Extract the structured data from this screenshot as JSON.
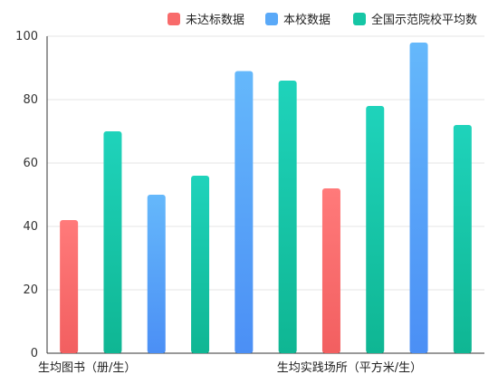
{
  "chart_data": {
    "type": "bar",
    "ylim": [
      0,
      100
    ],
    "yticks": [
      0,
      20,
      40,
      60,
      80,
      100
    ],
    "grid": true,
    "legend_position": "top-right",
    "legend": [
      {
        "key": "below",
        "label": "未达标数据",
        "color": "#f86b6b"
      },
      {
        "key": "school",
        "label": "本校数据",
        "color": "#5aa9f8"
      },
      {
        "key": "national",
        "label": "全国示范院校平均数",
        "color": "#16c6a5"
      }
    ],
    "category_labels": [
      "生均图书（册/生）",
      "生均实践场所（平方米/生）"
    ],
    "bars": [
      {
        "value": 42,
        "series": "below"
      },
      {
        "value": 70,
        "series": "national"
      },
      {
        "value": 50,
        "series": "school"
      },
      {
        "value": 56,
        "series": "national"
      },
      {
        "value": 89,
        "series": "school"
      },
      {
        "value": 86,
        "series": "national"
      },
      {
        "value": 52,
        "series": "below"
      },
      {
        "value": 78,
        "series": "national"
      },
      {
        "value": 98,
        "series": "school"
      },
      {
        "value": 72,
        "series": "national"
      }
    ],
    "gradients": {
      "below": [
        "#ff7a7a",
        "#f25f60"
      ],
      "school": [
        "#65b8fb",
        "#4b8ff5"
      ],
      "national": [
        "#1fd3bb",
        "#0fb693"
      ]
    }
  }
}
